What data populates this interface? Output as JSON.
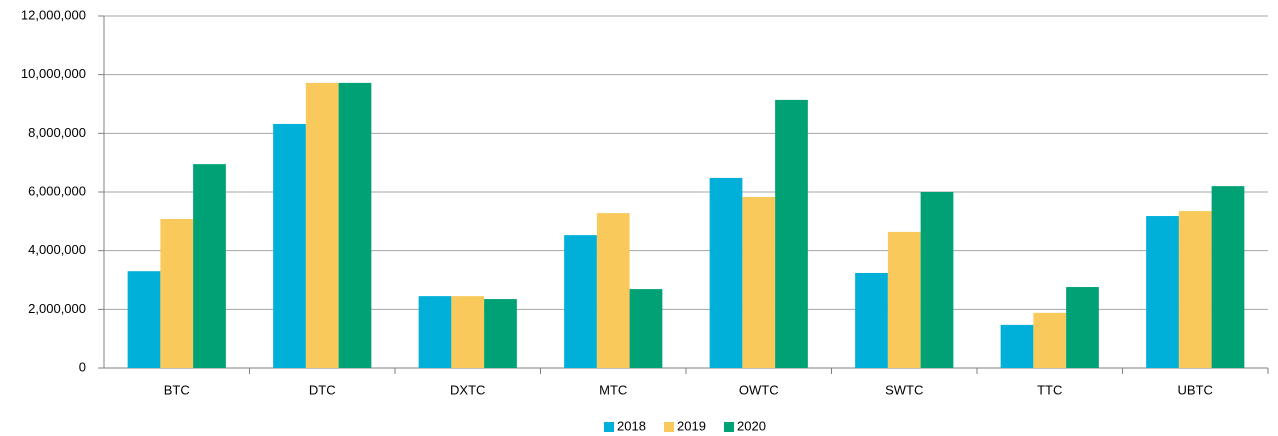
{
  "chart_data": {
    "type": "bar",
    "categories": [
      "BTC",
      "DTC",
      "DXTC",
      "MTC",
      "OWTC",
      "SWTC",
      "TTC",
      "UBTC"
    ],
    "series": [
      {
        "name": "2018",
        "color": "#00b0d8",
        "values": [
          3300000,
          8320000,
          2450000,
          4530000,
          6480000,
          3240000,
          1470000,
          5180000
        ]
      },
      {
        "name": "2019",
        "color": "#f9c95b",
        "values": [
          5080000,
          9720000,
          2450000,
          5280000,
          5830000,
          4640000,
          1880000,
          5350000
        ]
      },
      {
        "name": "2020",
        "color": "#00a275",
        "values": [
          6950000,
          9720000,
          2350000,
          2690000,
          9140000,
          6000000,
          2760000,
          6200000
        ]
      }
    ],
    "ylim": [
      0,
      12000000
    ],
    "yticks": [
      0,
      {
        "value": 2000000,
        "label": "2,000,000"
      },
      {
        "value": 4000000,
        "label": "4,000,000"
      },
      {
        "value": 6000000,
        "label": "6,000,000"
      },
      {
        "value": 8000000,
        "label": "8,000,000"
      },
      {
        "value": 10000000,
        "label": "10,000,000"
      },
      {
        "value": 12000000,
        "label": "12,000,000"
      }
    ],
    "grid": true,
    "legend": "bottom"
  }
}
